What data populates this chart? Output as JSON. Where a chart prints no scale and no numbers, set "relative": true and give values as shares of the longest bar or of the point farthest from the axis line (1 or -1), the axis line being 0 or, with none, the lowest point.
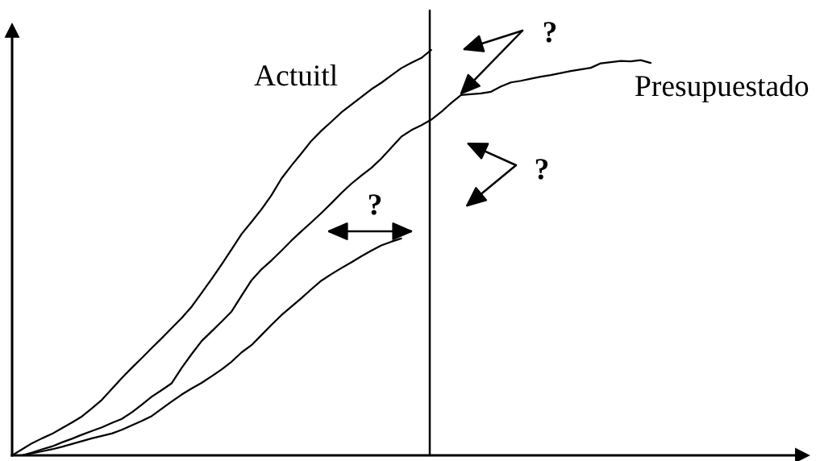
{
  "chart_data": {
    "type": "line",
    "relative": true,
    "tick_labels": false,
    "line_style": "solid",
    "categories": [
      null,
      null,
      null,
      null,
      null,
      null,
      null,
      null,
      null,
      null,
      null,
      null,
      null,
      null,
      null,
      null,
      null,
      null,
      null,
      null,
      null,
      null,
      null,
      null,
      null,
      null,
      null,
      null,
      null,
      null,
      null,
      null,
      null,
      null,
      null,
      null,
      null,
      null,
      null,
      null,
      null,
      null,
      null,
      null,
      null,
      null,
      null,
      null,
      null,
      null,
      null,
      null,
      null,
      null,
      null,
      null,
      null,
      null,
      null,
      null,
      null,
      null,
      null,
      null,
      null
    ],
    "series": [
      {
        "name": "Actuitl",
        "color": "#000000",
        "values": [
          0,
          0.015,
          0.03,
          0.042,
          0.053,
          0.067,
          0.081,
          0.096,
          0.116,
          0.137,
          0.164,
          0.191,
          0.216,
          0.24,
          0.265,
          0.289,
          0.314,
          0.339,
          0.367,
          0.401,
          0.435,
          0.471,
          0.508,
          0.546,
          0.576,
          0.607,
          0.642,
          0.683,
          0.715,
          0.745,
          0.776,
          0.801,
          0.823,
          0.846,
          0.865,
          0.884,
          0.903,
          0.919,
          0.937,
          0.955,
          0.968,
          0.98,
          1.0,
          null,
          null,
          null,
          null,
          null,
          null,
          null,
          null,
          null,
          null,
          null,
          null,
          null,
          null,
          null,
          null,
          null,
          null,
          null,
          null,
          null,
          null
        ]
      },
      {
        "name": "Presupuestado",
        "color": "#000000",
        "values": [
          null,
          0,
          0.007,
          0.015,
          0.022,
          0.032,
          0.041,
          0.051,
          0.06,
          0.069,
          0.08,
          0.09,
          0.106,
          0.125,
          0.145,
          0.161,
          0.178,
          0.216,
          0.25,
          0.282,
          0.306,
          0.33,
          0.355,
          0.394,
          0.432,
          0.459,
          0.481,
          0.505,
          0.53,
          0.553,
          0.575,
          0.598,
          0.622,
          0.647,
          0.67,
          0.69,
          0.709,
          0.732,
          0.759,
          0.786,
          0.802,
          0.814,
          0.828,
          0.847,
          0.869,
          0.889,
          0.891,
          0.893,
          0.897,
          0.91,
          0.92,
          0.924,
          0.929,
          0.934,
          0.938,
          0.943,
          0.948,
          0.952,
          0.956,
          0.967,
          0.97,
          0.973,
          0.972,
          0.975,
          0.968
        ]
      },
      {
        "color": "#000000",
        "values": [
          null,
          0,
          0.005,
          0.01,
          0.015,
          0.021,
          0.028,
          0.035,
          0.042,
          0.048,
          0.054,
          0.063,
          0.074,
          0.085,
          0.097,
          0.115,
          0.133,
          0.15,
          0.165,
          0.179,
          0.195,
          0.212,
          0.231,
          0.254,
          0.272,
          0.297,
          0.322,
          0.346,
          0.367,
          0.388,
          0.41,
          0.431,
          0.447,
          0.462,
          0.476,
          0.491,
          0.505,
          0.518,
          0.527,
          0.535,
          null,
          null,
          null,
          null,
          null,
          null,
          null,
          null,
          null,
          null,
          null,
          null,
          null,
          null,
          null,
          null,
          null,
          null,
          null,
          null,
          null,
          null,
          null,
          null,
          null
        ]
      }
    ],
    "annotations": [
      "?",
      "?",
      "?"
    ]
  }
}
